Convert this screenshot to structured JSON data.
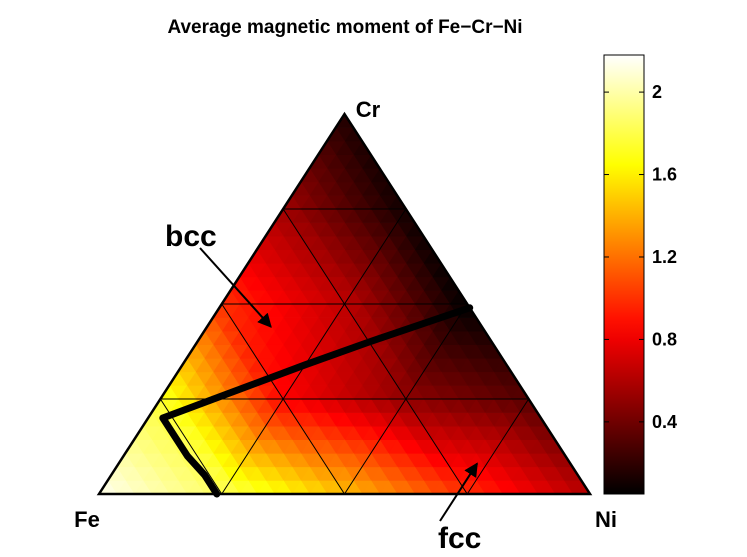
{
  "chart_data": {
    "type": "heatmap",
    "subtype": "ternary",
    "title": "Average magnetic moment of Fe−Cr−Ni",
    "vertices": {
      "left": "Fe",
      "top": "Cr",
      "right": "Ni"
    },
    "grid_divisions": 4,
    "colormap": "hot",
    "color_range": [
      0.05,
      2.18
    ],
    "colorbar_ticks": [
      {
        "value": 0.4,
        "label": "0.4"
      },
      {
        "value": 0.8,
        "label": "0.8"
      },
      {
        "value": 1.2,
        "label": "1.2"
      },
      {
        "value": 1.6,
        "label": "1.6"
      },
      {
        "value": 2.0,
        "label": "2"
      }
    ],
    "node_values": [
      {
        "fe": 1.0,
        "cr": 0.0,
        "ni": 0.0,
        "value": 2.15
      },
      {
        "fe": 0.75,
        "cr": 0.0,
        "ni": 0.25,
        "value": 1.85
      },
      {
        "fe": 0.5,
        "cr": 0.0,
        "ni": 0.5,
        "value": 1.45
      },
      {
        "fe": 0.25,
        "cr": 0.0,
        "ni": 0.75,
        "value": 1.0
      },
      {
        "fe": 0.0,
        "cr": 0.0,
        "ni": 1.0,
        "value": 0.62
      },
      {
        "fe": 0.75,
        "cr": 0.25,
        "ni": 0.0,
        "value": 1.75
      },
      {
        "fe": 0.5,
        "cr": 0.25,
        "ni": 0.25,
        "value": 0.85
      },
      {
        "fe": 0.25,
        "cr": 0.25,
        "ni": 0.5,
        "value": 0.5
      },
      {
        "fe": 0.0,
        "cr": 0.25,
        "ni": 0.75,
        "value": 0.32
      },
      {
        "fe": 0.5,
        "cr": 0.5,
        "ni": 0.0,
        "value": 1.0
      },
      {
        "fe": 0.25,
        "cr": 0.5,
        "ni": 0.25,
        "value": 0.65
      },
      {
        "fe": 0.0,
        "cr": 0.5,
        "ni": 0.5,
        "value": 0.05
      },
      {
        "fe": 0.25,
        "cr": 0.75,
        "ni": 0.0,
        "value": 0.55
      },
      {
        "fe": 0.0,
        "cr": 0.75,
        "ni": 0.25,
        "value": 0.1
      },
      {
        "fe": 0.0,
        "cr": 1.0,
        "ni": 0.0,
        "value": 0.15
      }
    ],
    "phase_boundary": [
      {
        "fe": 0.76,
        "cr": 0.0,
        "ni": 0.24
      },
      {
        "fe": 0.76,
        "cr": 0.05,
        "ni": 0.19
      },
      {
        "fe": 0.77,
        "cr": 0.1,
        "ni": 0.13
      },
      {
        "fe": 0.77,
        "cr": 0.2,
        "ni": 0.03
      },
      {
        "fe": 0.41,
        "cr": 0.34,
        "ni": 0.25
      },
      {
        "fe": 0.25,
        "cr": 0.4,
        "ni": 0.35
      },
      {
        "fe": 0.0,
        "cr": 0.49,
        "ni": 0.51
      }
    ],
    "annotations": [
      {
        "text": "bcc",
        "points_to": {
          "fe": 0.43,
          "cr": 0.44,
          "ni": 0.13
        }
      },
      {
        "text": "fcc",
        "points_to": {
          "fe": 0.19,
          "cr": 0.08,
          "ni": 0.73
        }
      }
    ]
  }
}
